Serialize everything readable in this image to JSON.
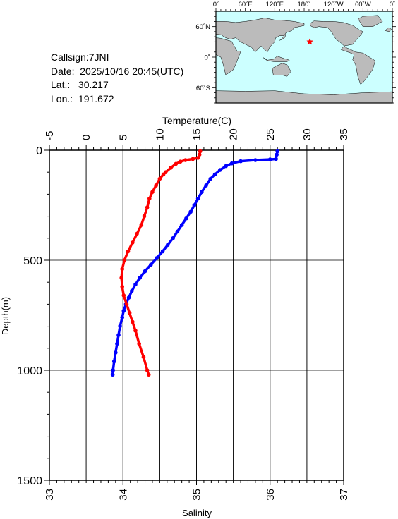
{
  "info": {
    "callsign": "Callsign:7JNI",
    "date": "Date:  2025/10/16 20:45(UTC)",
    "lat": "Lat.:   30.217",
    "lon": "Lon.:  191.672"
  },
  "map": {
    "lon_labels": [
      "0˚",
      "60˚E",
      "120˚E",
      "180˚",
      "120˚W",
      "60˚W",
      "0˚"
    ],
    "lat_labels": [
      "60˚N",
      "0˚",
      "60˚S"
    ],
    "station": {
      "lon": 191.672,
      "lat": 30.217
    },
    "ocean_color": "#ccffff",
    "land_color": "#bbbbbb",
    "marker_color": "#ff0000"
  },
  "chart_data": {
    "type": "scatter",
    "ylabel": "Depth(m)",
    "ylim": [
      1500,
      0
    ],
    "yticks": [
      0,
      500,
      1000,
      1500
    ],
    "temperature_axis": {
      "label": "Temperature(C)",
      "range": [
        -5,
        35
      ],
      "ticks": [
        "-5",
        "0",
        "5",
        "10",
        "15",
        "20",
        "25",
        "30",
        "35"
      ]
    },
    "salinity_axis": {
      "label": "Salinity",
      "range": [
        33,
        37
      ],
      "ticks": [
        "33",
        "34",
        "35",
        "36",
        "37"
      ]
    },
    "grid": true,
    "series": [
      {
        "variable": "temperature",
        "color": "#0000ff",
        "points": [
          [
            26.0,
            5
          ],
          [
            25.9,
            20
          ],
          [
            25.8,
            40
          ],
          [
            25.0,
            42
          ],
          [
            23.0,
            45
          ],
          [
            21.0,
            50
          ],
          [
            19.8,
            60
          ],
          [
            19.0,
            72
          ],
          [
            18.2,
            90
          ],
          [
            17.5,
            110
          ],
          [
            16.9,
            130
          ],
          [
            16.3,
            160
          ],
          [
            15.7,
            190
          ],
          [
            15.2,
            220
          ],
          [
            14.7,
            250
          ],
          [
            14.2,
            280
          ],
          [
            13.6,
            310
          ],
          [
            13.0,
            340
          ],
          [
            12.4,
            370
          ],
          [
            11.8,
            400
          ],
          [
            11.1,
            430
          ],
          [
            10.4,
            460
          ],
          [
            9.6,
            490
          ],
          [
            8.8,
            520
          ],
          [
            8.0,
            550
          ],
          [
            7.3,
            580
          ],
          [
            6.7,
            610
          ],
          [
            6.2,
            640
          ],
          [
            5.8,
            670
          ],
          [
            5.4,
            700
          ],
          [
            5.1,
            730
          ],
          [
            4.9,
            760
          ],
          [
            4.6,
            800
          ],
          [
            4.4,
            840
          ],
          [
            4.2,
            880
          ],
          [
            4.0,
            920
          ],
          [
            3.8,
            960
          ],
          [
            3.65,
            1000
          ],
          [
            3.6,
            1020
          ]
        ]
      },
      {
        "variable": "salinity",
        "color": "#ff0000",
        "points": [
          [
            35.05,
            5
          ],
          [
            35.04,
            20
          ],
          [
            35.02,
            35
          ],
          [
            34.95,
            40
          ],
          [
            34.85,
            45
          ],
          [
            34.78,
            52
          ],
          [
            34.72,
            62
          ],
          [
            34.65,
            80
          ],
          [
            34.58,
            100
          ],
          [
            34.55,
            110
          ],
          [
            34.5,
            130
          ],
          [
            34.45,
            160
          ],
          [
            34.4,
            190
          ],
          [
            34.36,
            220
          ],
          [
            34.33,
            260
          ],
          [
            34.29,
            300
          ],
          [
            34.25,
            340
          ],
          [
            34.19,
            380
          ],
          [
            34.13,
            420
          ],
          [
            34.07,
            460
          ],
          [
            34.02,
            500
          ],
          [
            33.99,
            540
          ],
          [
            33.98,
            580
          ],
          [
            33.99,
            620
          ],
          [
            34.01,
            660
          ],
          [
            34.05,
            700
          ],
          [
            34.09,
            740
          ],
          [
            34.13,
            780
          ],
          [
            34.17,
            820
          ],
          [
            34.22,
            880
          ],
          [
            34.28,
            940
          ],
          [
            34.33,
            1000
          ],
          [
            34.35,
            1020
          ]
        ]
      }
    ]
  }
}
